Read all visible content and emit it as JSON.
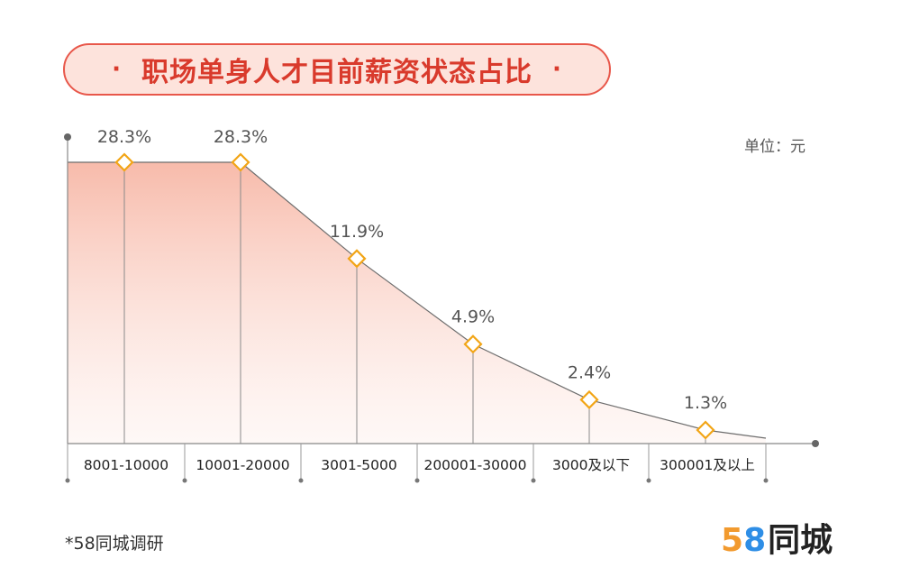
{
  "title": "职场单身人才目前薪资状态占比",
  "title_dot": "·",
  "unit_label": "单位：元",
  "source_note": "*58同城调研",
  "logo": {
    "digit1": "5",
    "digit2": "8",
    "text": "同城"
  },
  "colors": {
    "accent": "#e8574a",
    "marker": "#f2a516",
    "fill_top": "#f7b7a6",
    "line": "#777777"
  },
  "chart_data": {
    "type": "area",
    "title": "职场单身人才目前薪资状态占比",
    "unit": "单位：元",
    "categories": [
      "8001-10000",
      "10001-20000",
      "3001-5000",
      "200001-30000",
      "3000及以下",
      "300001及以上"
    ],
    "values": [
      28.3,
      28.3,
      11.9,
      4.9,
      2.4,
      1.3
    ],
    "value_labels": [
      "28.3%",
      "28.3%",
      "11.9%",
      "4.9%",
      "2.4%",
      "1.3%"
    ],
    "marker": "diamond",
    "grid": false,
    "legend": "none"
  }
}
